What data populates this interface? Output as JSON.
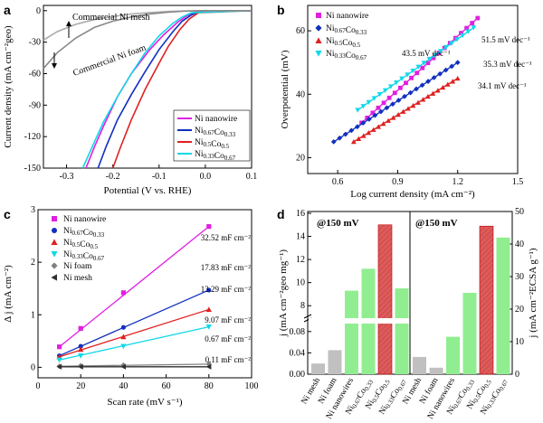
{
  "panels": {
    "a": "a",
    "b": "b",
    "c": "c",
    "d": "d"
  },
  "chart_data": [
    {
      "id": "a",
      "type": "line",
      "xlabel": "Potential (V vs. RHE)",
      "ylabel": "Current density (mA cm⁻²geo)",
      "xlim": [
        -0.35,
        0.1
      ],
      "ylim": [
        -150,
        5
      ],
      "xticks": [
        -0.3,
        -0.2,
        -0.1,
        0.0,
        0.1
      ],
      "yticks": [
        0,
        -30,
        -60,
        -90,
        -120,
        -150
      ],
      "legend_position": "bottom-right",
      "annotations": [
        "Commercial Ni mesh",
        "Commercial Ni foam"
      ],
      "series": [
        {
          "name": "Ni nanowire",
          "color": "#e020e0",
          "x": [
            -0.258,
            -0.24,
            -0.22,
            -0.19,
            -0.16,
            -0.12,
            -0.09,
            -0.06,
            -0.04,
            -0.02,
            0.1
          ],
          "y": [
            -150,
            -130,
            -110,
            -82,
            -60,
            -37,
            -23,
            -11,
            -5,
            -1,
            0
          ]
        },
        {
          "name": "Ni0.67Co0.33",
          "color": "#1030c0",
          "x": [
            -0.232,
            -0.215,
            -0.19,
            -0.16,
            -0.13,
            -0.1,
            -0.07,
            -0.05,
            -0.03,
            -0.015,
            0.1
          ],
          "y": [
            -150,
            -130,
            -104,
            -80,
            -58,
            -37,
            -20,
            -10,
            -4,
            -1,
            0
          ]
        },
        {
          "name": "Ni0.5Co0.5",
          "color": "#e02020",
          "x": [
            -0.2,
            -0.185,
            -0.16,
            -0.13,
            -0.1,
            -0.08,
            -0.055,
            -0.035,
            -0.015,
            0.1
          ],
          "y": [
            -150,
            -132,
            -104,
            -75,
            -50,
            -34,
            -18,
            -8,
            -2,
            0
          ]
        },
        {
          "name": "Ni0.33Co0.67",
          "color": "#10d8e8",
          "x": [
            -0.265,
            -0.245,
            -0.22,
            -0.19,
            -0.16,
            -0.13,
            -0.1,
            -0.07,
            -0.05,
            -0.03,
            0.1
          ],
          "y": [
            -150,
            -130,
            -106,
            -82,
            -60,
            -40,
            -24,
            -12,
            -6,
            -2,
            0
          ]
        },
        {
          "name": "Commercial Ni mesh",
          "color": "#aaaaaa",
          "x": [
            -0.35,
            -0.32,
            -0.28,
            -0.24,
            -0.2,
            -0.16,
            -0.12,
            -0.08,
            -0.05,
            -0.02,
            0.1
          ],
          "y": [
            -28,
            -20,
            -13,
            -8.5,
            -5.5,
            -3.2,
            -1.8,
            -0.8,
            -0.3,
            -0.1,
            0
          ]
        },
        {
          "name": "Commercial Ni foam",
          "color": "#888888",
          "x": [
            -0.35,
            -0.32,
            -0.28,
            -0.24,
            -0.2,
            -0.16,
            -0.12,
            -0.08,
            -0.05,
            -0.02,
            0.1
          ],
          "y": [
            -55,
            -40,
            -26,
            -16,
            -10,
            -6,
            -3.2,
            -1.5,
            -0.6,
            -0.1,
            0
          ]
        }
      ]
    },
    {
      "id": "b",
      "type": "scatter",
      "xlabel": "Log current density (mA cm⁻²)",
      "ylabel": "Overpotential (mV)",
      "xlim": [
        0.45,
        1.5
      ],
      "ylim": [
        15,
        68
      ],
      "xticks": [
        0.6,
        0.9,
        1.2,
        1.5
      ],
      "yticks": [
        20,
        40,
        60
      ],
      "legend_position": "top-left",
      "series": [
        {
          "name": "Ni nanowire",
          "color": "#e020e0",
          "marker": "square",
          "slope_label": "51.5 mV dec⁻¹",
          "x_range": [
            0.72,
            1.3
          ],
          "y_range": [
            31,
            64
          ]
        },
        {
          "name": "Ni0.67Co0.33",
          "color": "#1030c0",
          "marker": "diamond",
          "slope_label": "35.3 mV dec⁻¹",
          "x_range": [
            0.58,
            1.2
          ],
          "y_range": [
            25,
            50
          ]
        },
        {
          "name": "Ni0.5Co0.5",
          "color": "#e02020",
          "marker": "triangle-up",
          "slope_label": "34.1 mV dec⁻¹",
          "x_range": [
            0.68,
            1.2
          ],
          "y_range": [
            25,
            45
          ]
        },
        {
          "name": "Ni0.33Co0.67",
          "color": "#10d8e8",
          "marker": "triangle-down",
          "slope_label": "43.5 mV dec⁻¹",
          "x_range": [
            0.7,
            1.28
          ],
          "y_range": [
            35,
            61
          ]
        }
      ]
    },
    {
      "id": "c",
      "type": "line",
      "xlabel": "Scan rate (mV s⁻¹)",
      "ylabel": "Δ j (mA cm⁻²)",
      "xlim": [
        0,
        100
      ],
      "ylim": [
        -0.2,
        3
      ],
      "xticks": [
        0,
        20,
        40,
        60,
        80,
        100
      ],
      "yticks": [
        0,
        1,
        2,
        3
      ],
      "legend_position": "top-left",
      "x": [
        10,
        20,
        40,
        80
      ],
      "series": [
        {
          "name": "Ni nanowire",
          "color": "#e020e0",
          "marker": "square",
          "values": [
            0.39,
            0.74,
            1.42,
            2.68
          ],
          "label": "32.52 mF cm⁻²"
        },
        {
          "name": "Ni0.67Co0.33",
          "color": "#1030c0",
          "marker": "circle",
          "values": [
            0.22,
            0.4,
            0.76,
            1.47
          ],
          "label": "17.83 mF cm⁻²"
        },
        {
          "name": "Ni0.5Co0.5",
          "color": "#e02020",
          "marker": "triangle-up",
          "values": [
            0.2,
            0.34,
            0.58,
            1.1
          ],
          "label": "13.29 mF cm⁻²"
        },
        {
          "name": "Ni0.33Co0.67",
          "color": "#10d8e8",
          "marker": "triangle-down",
          "values": [
            0.14,
            0.22,
            0.4,
            0.77
          ],
          "label": "9.07 mF cm⁻²"
        },
        {
          "name": "Ni foam",
          "color": "#808080",
          "marker": "diamond",
          "values": [
            0.02,
            0.03,
            0.04,
            0.06
          ],
          "label": "0.67 mF cm⁻²"
        },
        {
          "name": "Ni mesh",
          "color": "#303030",
          "marker": "triangle-left",
          "values": [
            0.01,
            0.01,
            0.01,
            0.01
          ],
          "label": "0.11 mF cm⁻²"
        }
      ]
    },
    {
      "id": "d",
      "type": "bar",
      "ylabel_left": "j (mA cm⁻²geo mg⁻¹)",
      "ylabel_right": "j (mA cm⁻²ECSA g⁻¹)",
      "left_group_label": "@150 mV",
      "right_group_label": "@150 mV",
      "left_yticks_low": [
        0.0,
        0.04,
        0.08
      ],
      "left_yticks_high": [
        8,
        10,
        12,
        14,
        16
      ],
      "right_yticks": [
        0,
        10,
        20,
        30,
        40,
        50
      ],
      "groups": [
        {
          "categories": [
            "Ni mesh",
            "Ni foam",
            "Ni nanowires",
            "Ni0.67Co0.33",
            "Ni0.5Co0.5",
            "Ni0.33Co0.67"
          ],
          "values": [
            0.02,
            0.045,
            9.3,
            11.2,
            15.0,
            9.5
          ],
          "bar_colors": [
            "#c0c0c0",
            "#c0c0c0",
            "#90ee90",
            "#90ee90",
            "#e05a5a",
            "#90ee90"
          ],
          "label_colors": [
            "#000000",
            "#000000",
            "#22aa22",
            "#22aa22",
            "#e02020",
            "#22aa22"
          ]
        },
        {
          "categories": [
            "Ni mesh",
            "Ni foam",
            "Ni nanowires",
            "Ni0.67Co0.33",
            "Ni0.5Co0.5",
            "Ni0.33Co0.67"
          ],
          "values": [
            5.3,
            2.0,
            11.5,
            25.0,
            45.5,
            42.0
          ],
          "bar_colors": [
            "#c0c0c0",
            "#c0c0c0",
            "#90ee90",
            "#90ee90",
            "#e05a5a",
            "#90ee90"
          ],
          "label_colors": [
            "#000000",
            "#000000",
            "#22aa22",
            "#22aa22",
            "#e02020",
            "#22aa22"
          ]
        }
      ]
    }
  ]
}
